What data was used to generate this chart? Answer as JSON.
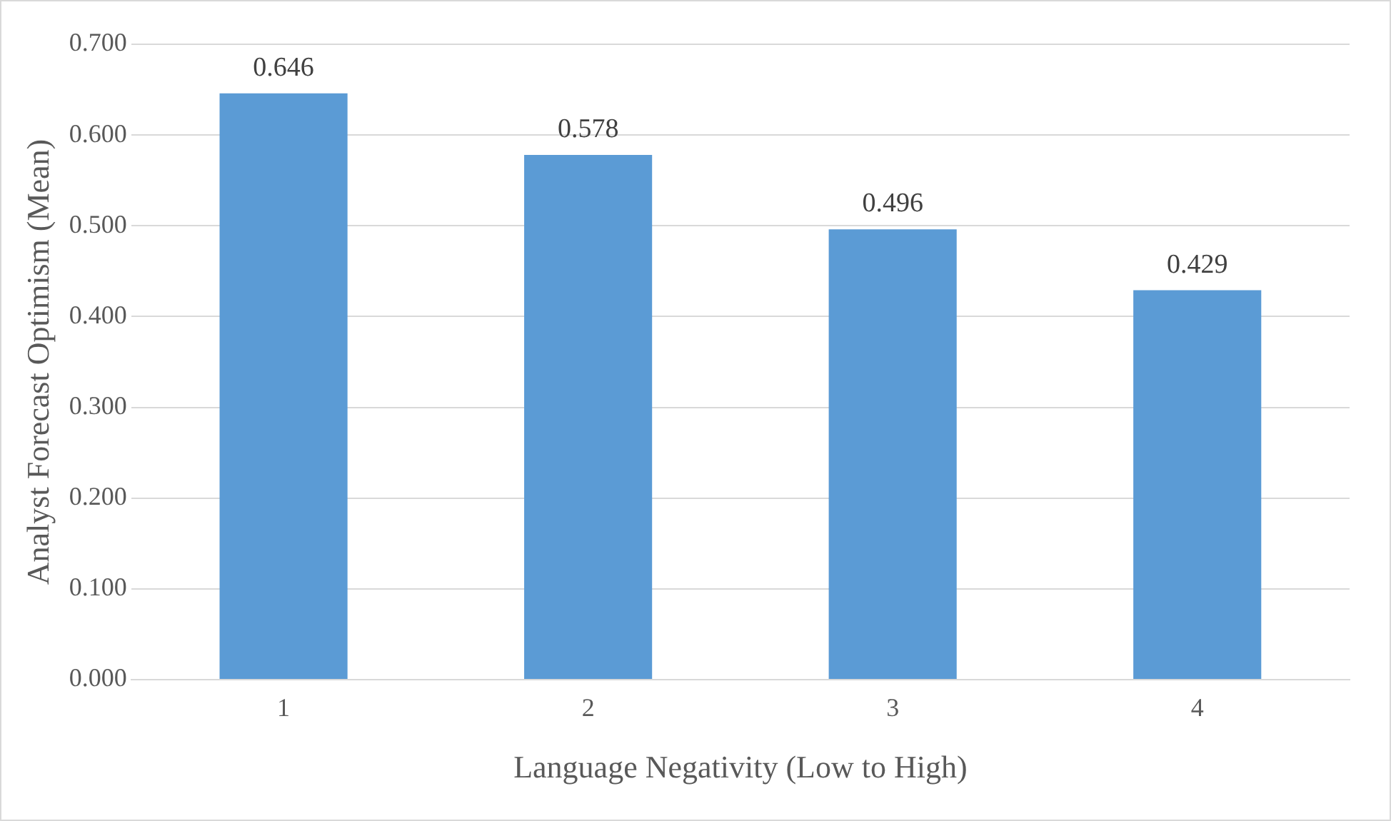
{
  "chart_data": {
    "type": "bar",
    "xlabel": "Language Negativity (Low to High)",
    "ylabel": "Analyst Forecast Optimism (Mean)",
    "categories": [
      "1",
      "2",
      "3",
      "4"
    ],
    "values": [
      0.646,
      0.578,
      0.496,
      0.429
    ],
    "color": "#5b9bd5",
    "ylim": [
      0,
      0.7
    ],
    "yticks": [
      {
        "value": 0,
        "label": "0.000"
      },
      {
        "value": 0.1,
        "label": "0.100"
      },
      {
        "value": 0.2,
        "label": "0.200"
      },
      {
        "value": 0.3,
        "label": "0.300"
      },
      {
        "value": 0.4,
        "label": "0.400"
      },
      {
        "value": 0.5,
        "label": "0.500"
      },
      {
        "value": 0.6,
        "label": "0.600"
      },
      {
        "value": 0.7,
        "label": "0.700"
      }
    ],
    "grid": "y",
    "data_labels": true
  }
}
